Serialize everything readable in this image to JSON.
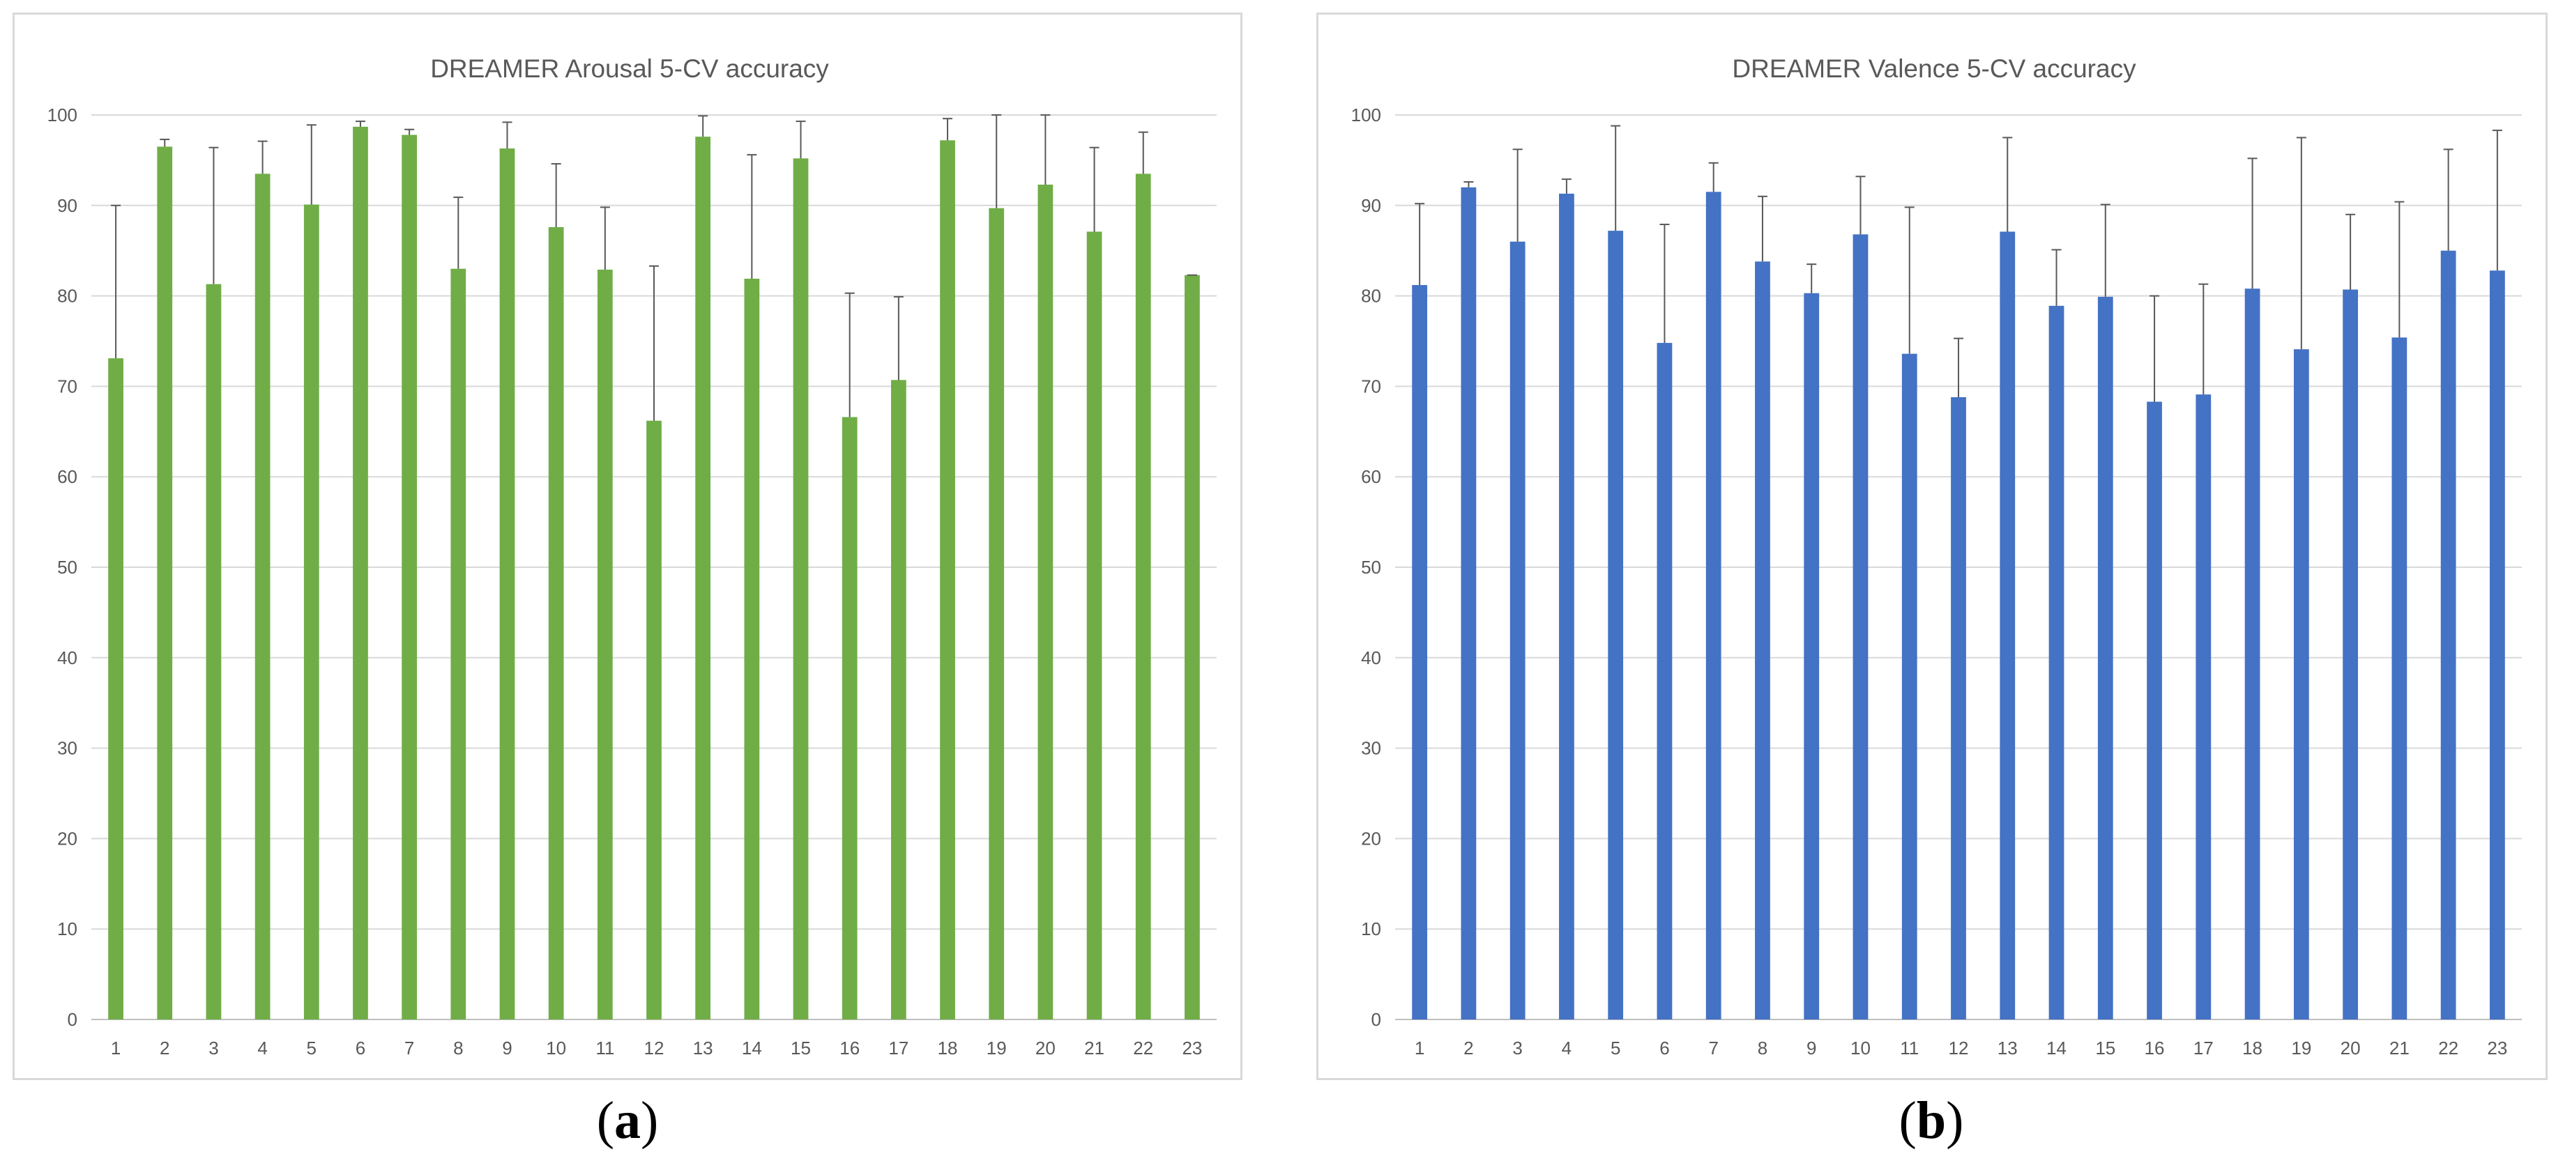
{
  "chart_data": [
    {
      "type": "bar",
      "title": "DREAMER Arousal 5-CV accuracy",
      "xlabel": "",
      "ylabel": "",
      "categories": [
        "1",
        "2",
        "3",
        "4",
        "5",
        "6",
        "7",
        "8",
        "9",
        "10",
        "11",
        "12",
        "13",
        "14",
        "15",
        "16",
        "17",
        "18",
        "19",
        "20",
        "21",
        "22",
        "23"
      ],
      "values": [
        73.1,
        96.5,
        81.3,
        93.5,
        90.1,
        98.7,
        97.8,
        83.0,
        96.3,
        87.6,
        82.9,
        66.2,
        97.6,
        81.9,
        95.2,
        66.6,
        70.7,
        97.2,
        89.7,
        92.3,
        87.1,
        93.5,
        82.3
      ],
      "error_upper": [
        90.0,
        97.3,
        96.4,
        97.1,
        98.9,
        99.3,
        98.4,
        90.9,
        99.2,
        94.6,
        89.8,
        83.3,
        99.9,
        95.6,
        99.3,
        80.3,
        79.9,
        99.6,
        100.5,
        100.5,
        96.4,
        98.1,
        82.3
      ],
      "ylim": [
        0,
        100
      ],
      "yticks": [
        0,
        10,
        20,
        30,
        40,
        50,
        60,
        70,
        80,
        90,
        100
      ],
      "bar_color": "#70ad47",
      "grid": true
    },
    {
      "type": "bar",
      "title": "DREAMER Valence 5-CV accuracy",
      "xlabel": "",
      "ylabel": "",
      "categories": [
        "1",
        "2",
        "3",
        "4",
        "5",
        "6",
        "7",
        "8",
        "9",
        "10",
        "11",
        "12",
        "13",
        "14",
        "15",
        "16",
        "17",
        "18",
        "19",
        "20",
        "21",
        "22",
        "23"
      ],
      "values": [
        81.2,
        92.0,
        86.0,
        91.3,
        87.2,
        74.8,
        91.5,
        83.8,
        80.3,
        86.8,
        73.6,
        68.8,
        87.1,
        78.9,
        79.9,
        68.3,
        69.1,
        80.8,
        74.1,
        80.7,
        75.4,
        85.0,
        82.8
      ],
      "error_upper": [
        90.2,
        92.6,
        96.2,
        92.9,
        98.8,
        87.9,
        94.7,
        91.0,
        83.5,
        93.2,
        89.8,
        75.3,
        97.5,
        85.1,
        90.1,
        80.0,
        81.3,
        95.2,
        97.5,
        89.0,
        90.4,
        96.2,
        98.3
      ],
      "ylim": [
        0,
        100
      ],
      "yticks": [
        0,
        10,
        20,
        30,
        40,
        50,
        60,
        70,
        80,
        90,
        100
      ],
      "bar_color": "#4472c4",
      "grid": true
    }
  ],
  "panel_labels": [
    "a",
    "b"
  ]
}
